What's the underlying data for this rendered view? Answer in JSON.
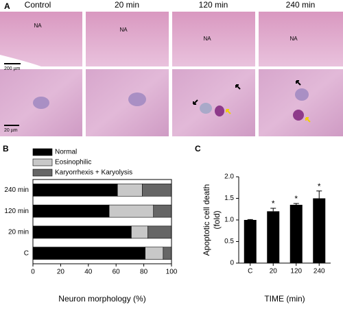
{
  "panel_a": {
    "label": "A",
    "columns": [
      "Control",
      "20 min",
      "120 min",
      "240 min"
    ],
    "annotations": [
      "NA",
      "NA",
      "NA",
      "NA"
    ],
    "scale_bars": [
      "200 µm",
      "20 µm"
    ]
  },
  "chart_data": [
    {
      "type": "hbar_stacked",
      "panel_label": "B",
      "categories": [
        "C",
        "20 min",
        "120 min",
        "240 min"
      ],
      "series": [
        {
          "name": "Normal",
          "color": "#000000",
          "values": [
            81,
            71,
            55,
            61
          ]
        },
        {
          "name": "Eosinophilic",
          "color": "#c8c8c8",
          "values": [
            13,
            12,
            32,
            18
          ]
        },
        {
          "name": "Karyorrhexis + Karyolysis",
          "color": "#666666",
          "values": [
            6,
            17,
            13,
            21
          ]
        }
      ],
      "xlim": [
        0,
        100
      ],
      "xticks": [
        0,
        20,
        40,
        60,
        80,
        100
      ],
      "xlabel": "Neuron morphology (%)",
      "legend": "top-left"
    },
    {
      "type": "bar",
      "panel_label": "C",
      "categories": [
        "C",
        "20",
        "120",
        "240"
      ],
      "values": [
        1.0,
        1.2,
        1.35,
        1.5
      ],
      "errors": [
        0.01,
        0.07,
        0.03,
        0.17
      ],
      "significance": [
        null,
        "*",
        "*",
        "*"
      ],
      "color": "#000000",
      "ylim": [
        0,
        2
      ],
      "yticks": [
        0,
        0.5,
        {
          "value": 1,
          "label": "1.0"
        },
        1.5,
        {
          "value": 2,
          "label": "2.0"
        }
      ],
      "xlabel": "TIME (min)",
      "ylabel": [
        "Apoptotic cell death",
        "(fold)"
      ]
    }
  ]
}
